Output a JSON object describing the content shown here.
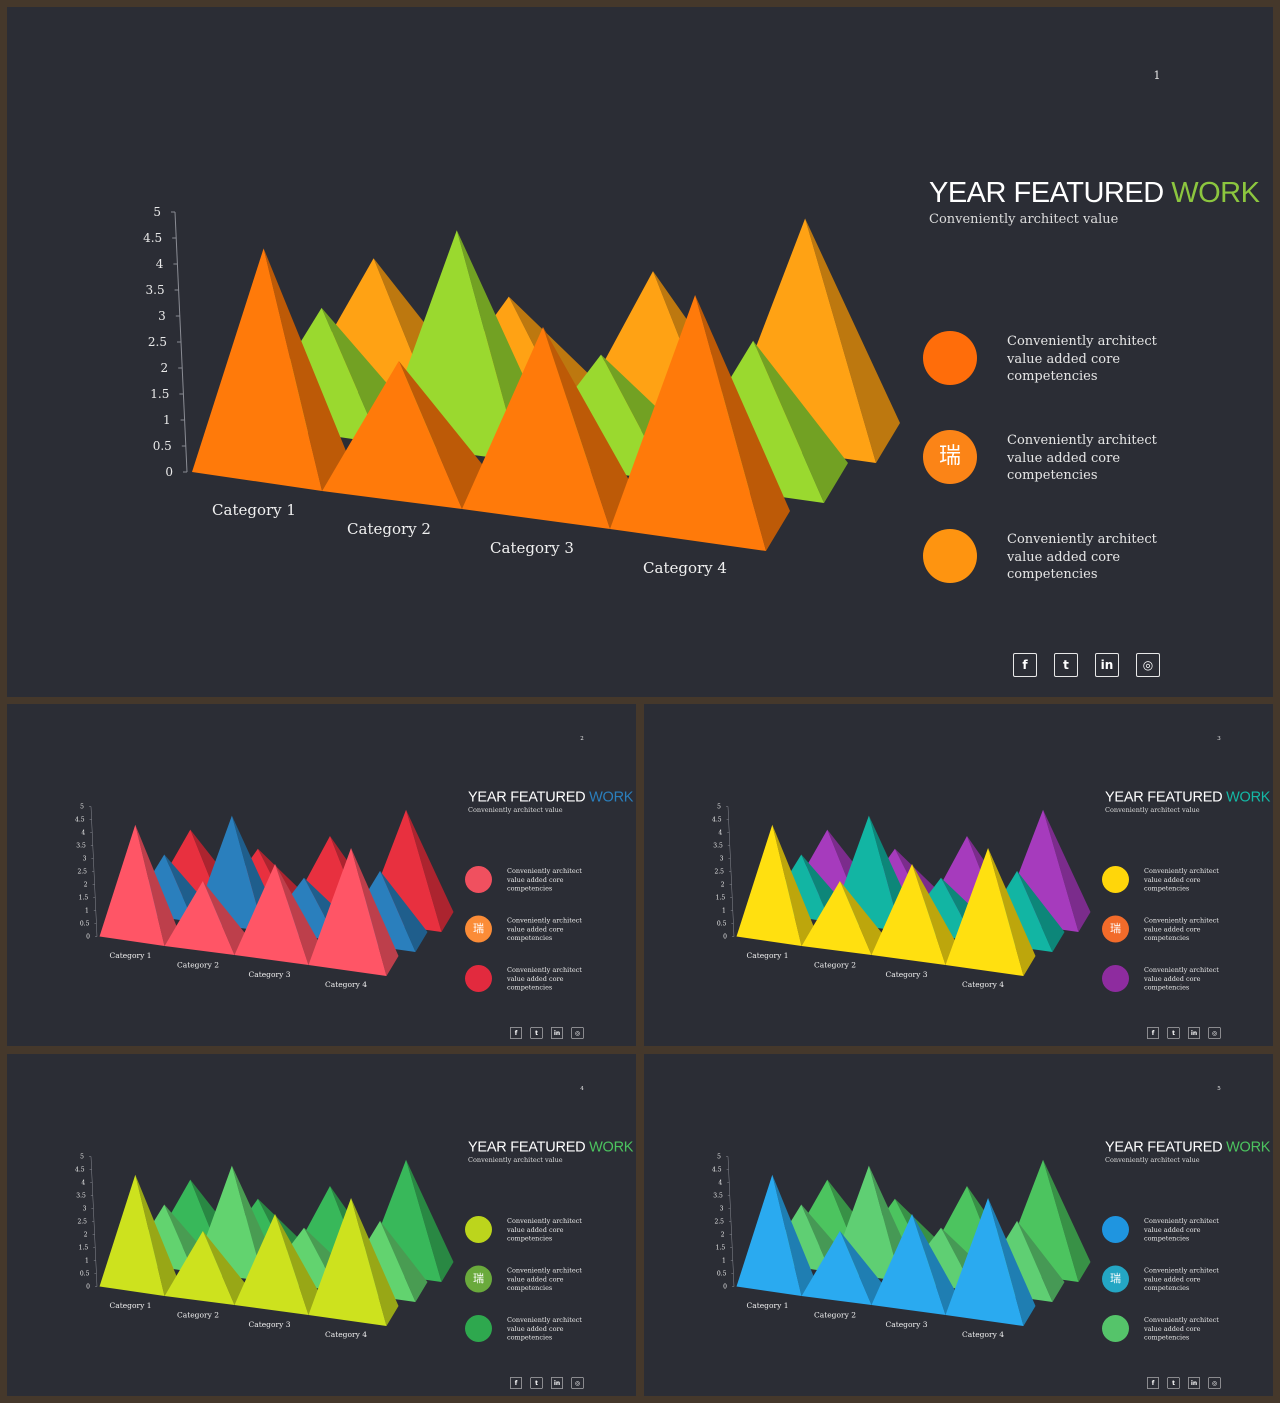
{
  "slides": [
    {
      "page_number": "1",
      "title_main": "YEAR FEATURED ",
      "title_accent": "WORK",
      "accent_color": "#8cc63f",
      "subtitle": "Conveniently architect value",
      "legend": [
        {
          "text": "Conveniently architect value added core competencies",
          "color": "#ff6d0a",
          "glyph": ""
        },
        {
          "text": "Conveniently architect value added core competencies",
          "color": "#fb8417",
          "glyph": "瑞"
        },
        {
          "text": "Conveniently architect value added core competencies",
          "color": "#fe9410",
          "glyph": ""
        }
      ],
      "series_colors": [
        "#ff7a0a",
        "#9ad92f",
        "#ffa214"
      ]
    },
    {
      "page_number": "2",
      "title_main": "YEAR FEATURED ",
      "title_accent": "WORK",
      "accent_color": "#2a7fbd",
      "subtitle": "Conveniently architect value",
      "legend": [
        {
          "text": "Conveniently architect value added core competencies",
          "color": "#f0505f",
          "glyph": ""
        },
        {
          "text": "Conveniently architect value added core competencies",
          "color": "#fb8c37",
          "glyph": "瑞"
        },
        {
          "text": "Conveniently architect value added core competencies",
          "color": "#e22a3e",
          "glyph": ""
        }
      ],
      "series_colors": [
        "#ff5566",
        "#2a7fbd",
        "#e8303f"
      ]
    },
    {
      "page_number": "3",
      "title_main": "YEAR FEATURED ",
      "title_accent": "WORK",
      "accent_color": "#14b8a6",
      "subtitle": "Conveniently architect value",
      "legend": [
        {
          "text": "Conveniently architect value added core competencies",
          "color": "#ffd60a",
          "glyph": ""
        },
        {
          "text": "Conveniently architect value added core competencies",
          "color": "#f26b2a",
          "glyph": "瑞"
        },
        {
          "text": "Conveniently architect value added core competencies",
          "color": "#8e2c9f",
          "glyph": ""
        }
      ],
      "series_colors": [
        "#ffe010",
        "#12b5a3",
        "#a63bbd"
      ]
    },
    {
      "page_number": "4",
      "title_main": "YEAR FEATURED ",
      "title_accent": "WORK",
      "accent_color": "#4cc45f",
      "subtitle": "Conveniently architect value",
      "legend": [
        {
          "text": "Conveniently architect value added core competencies",
          "color": "#bcd51c",
          "glyph": ""
        },
        {
          "text": "Conveniently architect value added core competencies",
          "color": "#6aaa3c",
          "glyph": "瑞"
        },
        {
          "text": "Conveniently architect value added core competencies",
          "color": "#2ea84e",
          "glyph": ""
        }
      ],
      "series_colors": [
        "#cde21e",
        "#62d36f",
        "#38b85a"
      ]
    },
    {
      "page_number": "5",
      "title_main": "YEAR FEATURED ",
      "title_accent": "WORK",
      "accent_color": "#4cc45f",
      "subtitle": "Conveniently architect value",
      "legend": [
        {
          "text": "Conveniently architect value added core competencies",
          "color": "#1f95e0",
          "glyph": ""
        },
        {
          "text": "Conveniently architect value added core competencies",
          "color": "#24a6c4",
          "glyph": "瑞"
        },
        {
          "text": "Conveniently architect value added core competencies",
          "color": "#55c46a",
          "glyph": ""
        }
      ],
      "series_colors": [
        "#2aaaf0",
        "#5fcf73",
        "#4cc45f"
      ]
    }
  ],
  "social_icons": [
    {
      "name": "facebook-icon",
      "glyph": "f"
    },
    {
      "name": "twitter-icon",
      "glyph": "t"
    },
    {
      "name": "linkedin-icon",
      "glyph": "in"
    },
    {
      "name": "instagram-icon",
      "glyph": "◎"
    }
  ],
  "chart_data": {
    "type": "bar",
    "subtype": "3d-pyramid",
    "categories": [
      "Category 1",
      "Category 2",
      "Category 3",
      "Category 4"
    ],
    "series": [
      {
        "values": [
          4.3,
          2.5,
          3.5,
          4.5
        ]
      },
      {
        "values": [
          2.4,
          4.4,
          2.2,
          2.9
        ]
      },
      {
        "values": [
          2.6,
          2.2,
          3.1,
          4.6
        ]
      }
    ],
    "y_ticks": [
      "0",
      "0.5",
      "1",
      "1.5",
      "2",
      "2.5",
      "3",
      "3.5",
      "4",
      "4.5",
      "5"
    ],
    "ylim": [
      0,
      5
    ],
    "grid": false,
    "legend": "none"
  }
}
